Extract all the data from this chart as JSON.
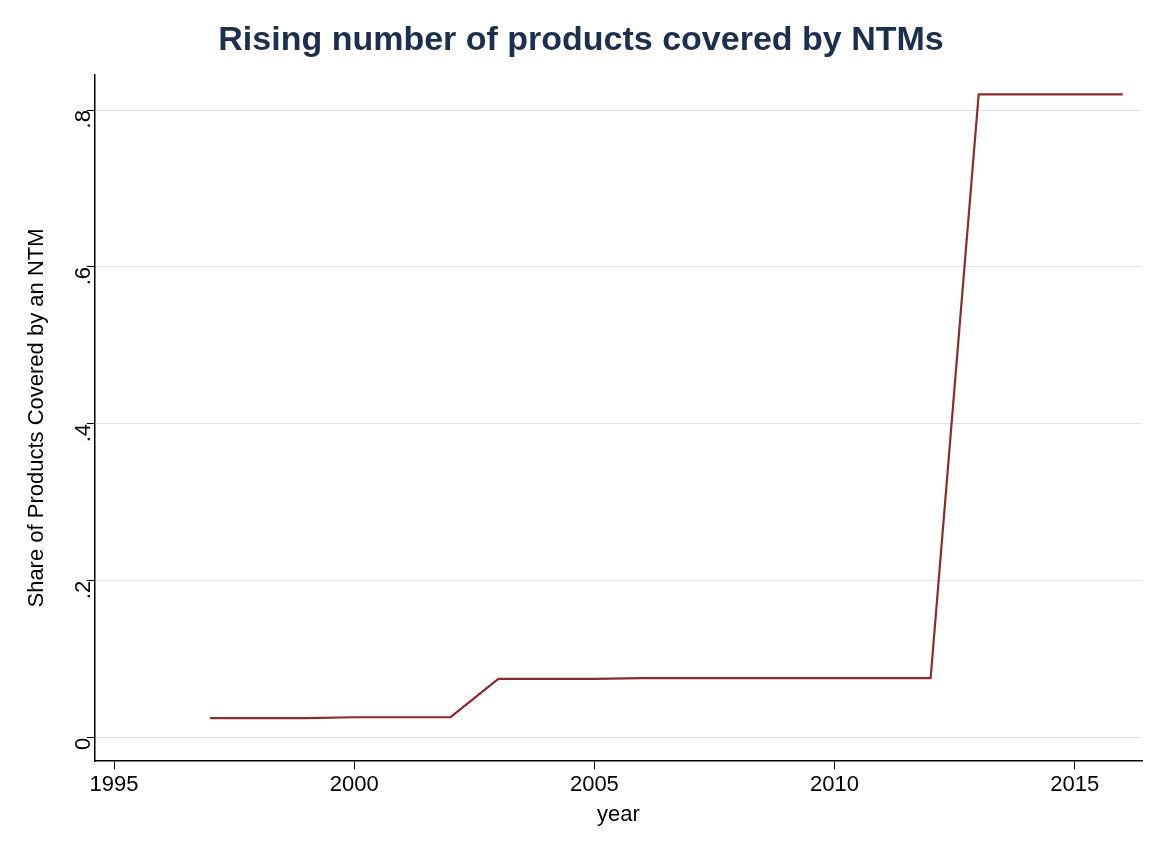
{
  "chart_data": {
    "type": "line",
    "title": "Rising number of products covered by NTMs",
    "xlabel": "year",
    "ylabel": "Share of Products Covered by an NTM",
    "x": [
      1997,
      1998,
      1999,
      2000,
      2001,
      2002,
      2003,
      2004,
      2005,
      2006,
      2007,
      2008,
      2009,
      2010,
      2011,
      2012,
      2013,
      2014,
      2015,
      2016
    ],
    "series": [
      {
        "color": "#8b2c2c",
        "values": [
          0.025,
          0.025,
          0.025,
          0.026,
          0.026,
          0.026,
          0.075,
          0.075,
          0.075,
          0.076,
          0.076,
          0.076,
          0.076,
          0.076,
          0.076,
          0.076,
          0.82,
          0.82,
          0.82,
          0.82
        ]
      }
    ],
    "xlim": [
      1994.6,
      2016.4
    ],
    "xticks": [
      1995,
      2000,
      2005,
      2010,
      2015
    ],
    "ylim": [
      -0.03,
      0.845
    ],
    "yticks": [
      {
        "value": 0,
        "label": "0"
      },
      {
        "value": 0.2,
        "label": ".2"
      },
      {
        "value": 0.4,
        "label": ".4"
      },
      {
        "value": 0.6,
        "label": ".6"
      },
      {
        "value": 0.8,
        "label": ".8"
      }
    ],
    "grid": "y",
    "legend": false,
    "marker": "none",
    "line_style": "solid"
  }
}
